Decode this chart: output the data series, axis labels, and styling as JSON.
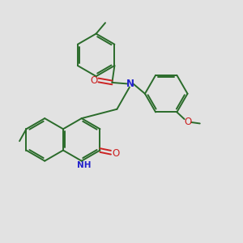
{
  "bg_color": "#e2e2e2",
  "bond_color": "#2a6b2a",
  "n_color": "#2222cc",
  "o_color": "#cc2222",
  "bond_lw": 1.4,
  "dbo": 0.008,
  "fig_bg": "#e2e2e2",
  "xlim": [
    0.0,
    1.0
  ],
  "ylim": [
    0.0,
    1.0
  ]
}
